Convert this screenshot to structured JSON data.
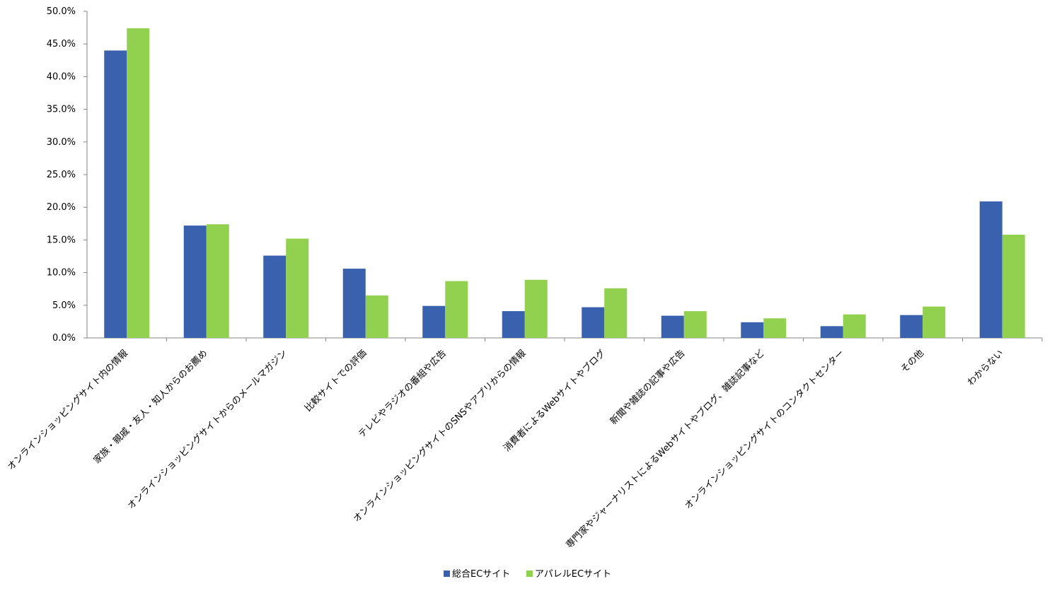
{
  "chart_data": {
    "type": "bar",
    "title": "",
    "xlabel": "",
    "ylabel": "",
    "ylim": [
      0,
      50
    ],
    "y_ticks": [
      "0.0%",
      "5.0%",
      "10.0%",
      "15.0%",
      "20.0%",
      "25.0%",
      "30.0%",
      "35.0%",
      "40.0%",
      "45.0%",
      "50.0%"
    ],
    "grid": false,
    "legend_position": "bottom",
    "categories": [
      "オンラインショッピングサイト内の情報",
      "家族・親戚・友人・知人からのお薦め",
      "オンラインショッピングサイトからのメールマガジン",
      "比較サイトでの評価",
      "テレビやラジオの番組や広告",
      "オンラインショッピングサイトのSNSやアプリからの情報",
      "消費者によるWebサイトやブログ",
      "新聞や雑誌の記事や広告",
      "専門家やジャーナリストによるWebサイトやブログ、雑誌記事など",
      "オンラインショッピングサイトのコンタクトセンター",
      "その他",
      "わからない"
    ],
    "series": [
      {
        "name": "総合ECサイト",
        "color": "#3a61ad",
        "values": [
          44.0,
          17.2,
          12.6,
          10.6,
          4.9,
          4.1,
          4.7,
          3.4,
          2.4,
          1.8,
          3.5,
          20.9
        ]
      },
      {
        "name": "アパレルECサイト",
        "color": "#92d050",
        "values": [
          47.4,
          17.4,
          15.2,
          6.5,
          8.7,
          8.9,
          7.6,
          4.1,
          3.0,
          3.6,
          4.8,
          15.8
        ]
      }
    ]
  }
}
